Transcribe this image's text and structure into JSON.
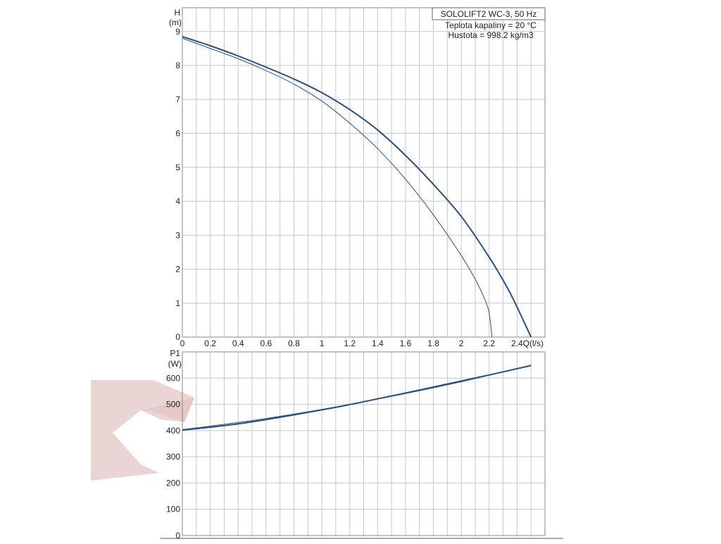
{
  "chart_data": [
    {
      "type": "line",
      "title": "SOLOLIFT2 WC-3, 50 Hz",
      "info_lines": [
        "Teplota kapaliny = 20 °C",
        "Hustota = 998.2 kg/m3"
      ],
      "ylabel_top": "H",
      "ylabel_unit": "(m)",
      "xlabel": "Q(l/s)",
      "xlim": [
        0,
        2.6
      ],
      "ylim": [
        0,
        9.7
      ],
      "x_ticks": [
        0,
        0.2,
        0.4,
        0.6,
        0.8,
        1,
        1.2,
        1.4,
        1.6,
        1.8,
        2,
        2.2,
        2.4
      ],
      "x_tick_labels": [
        "0",
        "0.2",
        "0.4",
        "0.6",
        "0.8",
        "1",
        "1.2",
        "1.4",
        "1.6",
        "1.8",
        "2",
        "2.2",
        "2.4"
      ],
      "y_ticks": [
        0,
        1,
        2,
        3,
        4,
        5,
        6,
        7,
        8,
        9
      ],
      "grid": true,
      "color": "#2a4f80",
      "series": [
        {
          "style": "thick",
          "x": [
            0,
            0.2,
            0.4,
            0.6,
            0.8,
            1.0,
            1.2,
            1.4,
            1.6,
            1.8,
            2.0,
            2.2,
            2.35,
            2.5
          ],
          "y": [
            8.85,
            8.58,
            8.28,
            7.95,
            7.6,
            7.2,
            6.7,
            6.1,
            5.35,
            4.5,
            3.55,
            2.35,
            1.3,
            0
          ]
        },
        {
          "style": "thin",
          "x": [
            0,
            0.2,
            0.4,
            0.6,
            0.8,
            1.0,
            1.2,
            1.4,
            1.6,
            1.8,
            2.0,
            2.1,
            2.17,
            2.2,
            2.22
          ],
          "y": [
            8.8,
            8.5,
            8.2,
            7.85,
            7.45,
            6.95,
            6.3,
            5.55,
            4.65,
            3.6,
            2.4,
            1.7,
            1.1,
            0.7,
            0
          ]
        }
      ]
    },
    {
      "type": "line",
      "ylabel_top": "P1",
      "ylabel_unit": "(W)",
      "xlim": [
        0,
        2.6
      ],
      "ylim": [
        0,
        700
      ],
      "x_ticks": [
        0,
        0.2,
        0.4,
        0.6,
        0.8,
        1,
        1.2,
        1.4,
        1.6,
        1.8,
        2,
        2.2,
        2.4
      ],
      "y_ticks": [
        0,
        100,
        200,
        300,
        400,
        500,
        600
      ],
      "y_tick_labels": [
        "0",
        "100",
        "200",
        "300",
        "400",
        "500",
        "600"
      ],
      "grid": true,
      "color": "#2a4f80",
      "series": [
        {
          "style": "thick",
          "x": [
            0,
            0.2,
            0.4,
            0.6,
            0.8,
            1.0,
            1.2,
            1.4,
            1.6,
            1.8,
            2.0,
            2.2,
            2.4,
            2.5
          ],
          "y": [
            402,
            413,
            426,
            442,
            460,
            479,
            499,
            521,
            543,
            566,
            589,
            612,
            636,
            648
          ]
        },
        {
          "style": "thin",
          "x": [
            0,
            0.2,
            0.4,
            0.6,
            0.8,
            1.0,
            1.2,
            1.4,
            1.6,
            1.8,
            2.0,
            2.2,
            2.22
          ],
          "y": [
            404,
            417,
            431,
            446,
            463,
            481,
            500,
            520,
            541,
            563,
            586,
            611,
            614
          ]
        }
      ]
    }
  ],
  "watermark": {
    "color": "#e3c6c6",
    "shape": "logo"
  }
}
